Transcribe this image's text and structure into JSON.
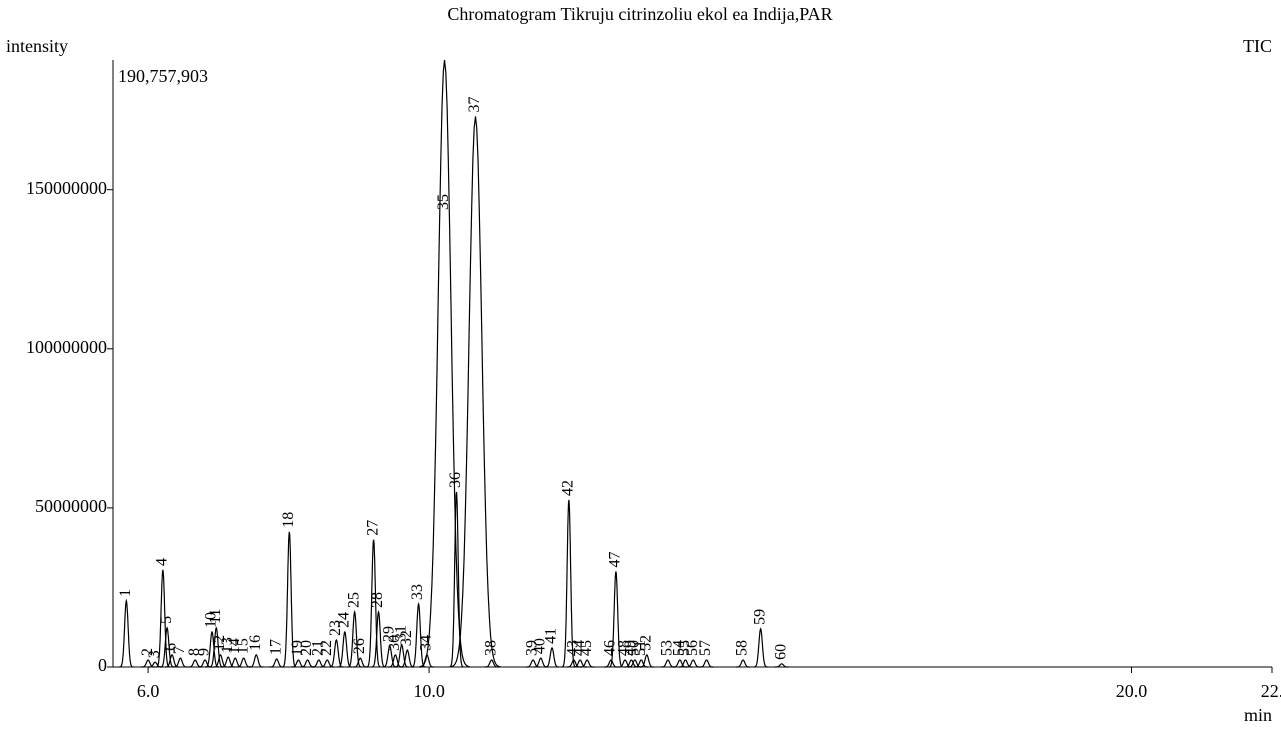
{
  "chart_data": {
    "type": "chromatogram",
    "title": "Chromatogram Tikruju citrinzoliu ekol ea Indija,PAR",
    "y_label": "intensity",
    "trace_label": "TIC",
    "x_label": "min",
    "max_intensity_label": "190,757,903",
    "color": "#000000",
    "xlim": [
      5.5,
      22.0
    ],
    "xticks": [
      {
        "value": 6,
        "label": "6.0"
      },
      {
        "value": 10,
        "label": "10.0"
      },
      {
        "value": 20,
        "label": "20.0"
      },
      {
        "value": 22,
        "label": "22."
      }
    ],
    "ylim": [
      0,
      190757903
    ],
    "yticks": [
      0,
      50000000,
      100000000,
      150000000
    ],
    "peaks": {
      "labels": [
        "1",
        "2",
        "3",
        "4",
        "5",
        "6",
        "7",
        "8",
        "9",
        "10",
        "11",
        "12",
        "13",
        "14",
        "15",
        "16",
        "17",
        "18",
        "19",
        "20",
        "21",
        "22",
        "23",
        "24",
        "25",
        "26",
        "27",
        "28",
        "29",
        "30",
        "31",
        "32",
        "33",
        "34",
        "35",
        "36",
        "37",
        "38",
        "39",
        "40",
        "41",
        "42",
        "43",
        "44",
        "45",
        "46",
        "47",
        "48",
        "49",
        "50",
        "51",
        "52",
        "53",
        "54",
        "55",
        "56",
        "57",
        "58",
        "59",
        "60"
      ],
      "x": [
        5.69,
        6.0,
        6.1,
        6.21,
        6.27,
        6.34,
        6.46,
        6.67,
        6.81,
        6.91,
        6.97,
        7.03,
        7.14,
        7.24,
        7.36,
        7.54,
        7.83,
        8.01,
        8.14,
        8.27,
        8.43,
        8.55,
        8.68,
        8.8,
        8.94,
        9.02,
        9.21,
        9.28,
        9.44,
        9.52,
        9.61,
        9.69,
        9.85,
        9.97,
        10.22,
        10.39,
        10.66,
        10.89,
        11.48,
        11.59,
        11.75,
        11.99,
        12.06,
        12.15,
        12.25,
        12.59,
        12.66,
        12.79,
        12.88,
        12.93,
        13.02,
        13.1,
        13.4,
        13.57,
        13.65,
        13.76,
        13.95,
        14.47,
        14.72,
        15.02
      ],
      "values": [
        20800000,
        2200000,
        1500000,
        30500000,
        12300000,
        3800000,
        2800000,
        2200000,
        2200000,
        11000000,
        12300000,
        3800000,
        3100000,
        2800000,
        2800000,
        3800000,
        2500000,
        42500000,
        2200000,
        2200000,
        2200000,
        2200000,
        8500000,
        11000000,
        17300000,
        2800000,
        40000000,
        17300000,
        6600000,
        3800000,
        6900000,
        5300000,
        19800000,
        3800000,
        190757903,
        55000000,
        173000000,
        2200000,
        2200000,
        2800000,
        6000000,
        52500000,
        2200000,
        2200000,
        2200000,
        2200000,
        30000000,
        2200000,
        2200000,
        2200000,
        2200000,
        3800000,
        2200000,
        2200000,
        2200000,
        2200000,
        2200000,
        2200000,
        12000000,
        1000000
      ]
    }
  }
}
